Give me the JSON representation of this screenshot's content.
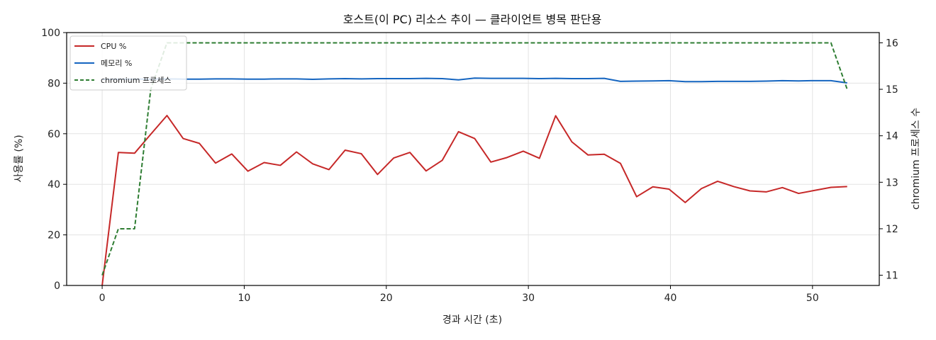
{
  "chart_data": {
    "type": "line",
    "title": "호스트(이 PC) 리소스 추이 — 클라이언트 병목 판단용",
    "xlabel": "경과 시간 (초)",
    "ylabel": "사용률 (%)",
    "y2label": "chromium 프로세스 수",
    "xlim": [
      -2.5,
      54.7
    ],
    "ylim": [
      0,
      100
    ],
    "y2lim": [
      10.78,
      16.22
    ],
    "xticks": [
      "0",
      "10",
      "20",
      "30",
      "40",
      "50"
    ],
    "yticks": [
      "0",
      "20",
      "40",
      "60",
      "80",
      "100"
    ],
    "y2ticks": [
      "11",
      "12",
      "13",
      "14",
      "15",
      "16"
    ],
    "grid": true,
    "legend_position": "top-left",
    "x": [
      0,
      1.14,
      2.28,
      3.42,
      4.56,
      5.7,
      6.84,
      7.98,
      9.12,
      10.26,
      11.4,
      12.54,
      13.68,
      14.82,
      15.96,
      17.1,
      18.24,
      19.38,
      20.52,
      21.66,
      22.8,
      23.94,
      25.08,
      26.22,
      27.36,
      28.5,
      29.64,
      30.78,
      31.92,
      33.06,
      34.2,
      35.34,
      36.48,
      37.62,
      38.76,
      39.9,
      41.04,
      42.18,
      43.32,
      44.46,
      45.6,
      46.74,
      47.88,
      49.02,
      50.16,
      51.3,
      52.44
    ],
    "series": [
      {
        "name": "CPU %",
        "axis": "left",
        "color": "#c62828",
        "style": "solid",
        "values": [
          0,
          52.6,
          52.3,
          59.8,
          67.2,
          58.1,
          56.2,
          48.4,
          52.0,
          45.2,
          48.6,
          47.5,
          52.8,
          48.1,
          45.8,
          53.5,
          52.1,
          43.9,
          50.4,
          52.6,
          45.3,
          49.5,
          60.8,
          58.1,
          48.8,
          50.6,
          53.1,
          50.3,
          67.1,
          56.8,
          51.6,
          51.9,
          48.3,
          35.1,
          39.0,
          38.1,
          32.8,
          38.3,
          41.2,
          39.1,
          37.4,
          37.0,
          38.7,
          36.4,
          37.6,
          38.8,
          39.1
        ]
      },
      {
        "name": "메모리 %",
        "axis": "left",
        "color": "#1565c0",
        "style": "solid",
        "values": [
          81.5,
          81.6,
          81.6,
          81.6,
          81.7,
          81.6,
          81.6,
          81.7,
          81.7,
          81.6,
          81.6,
          81.7,
          81.7,
          81.5,
          81.7,
          81.8,
          81.7,
          81.8,
          81.8,
          81.8,
          81.9,
          81.8,
          81.3,
          82.0,
          81.9,
          81.9,
          81.9,
          81.8,
          81.9,
          81.8,
          81.8,
          81.9,
          80.7,
          80.8,
          80.9,
          81.0,
          80.6,
          80.6,
          80.7,
          80.7,
          80.7,
          80.8,
          81.0,
          80.9,
          81.0,
          81.0,
          80.1
        ]
      },
      {
        "name": "chromium 프로세스",
        "axis": "right",
        "color": "#2e7d32",
        "style": "dashed",
        "values": [
          11,
          12,
          12,
          15,
          16,
          16,
          16,
          16,
          16,
          16,
          16,
          16,
          16,
          16,
          16,
          16,
          16,
          16,
          16,
          16,
          16,
          16,
          16,
          16,
          16,
          16,
          16,
          16,
          16,
          16,
          16,
          16,
          16,
          16,
          16,
          16,
          16,
          16,
          16,
          16,
          16,
          16,
          16,
          16,
          16,
          16,
          15
        ]
      }
    ]
  }
}
